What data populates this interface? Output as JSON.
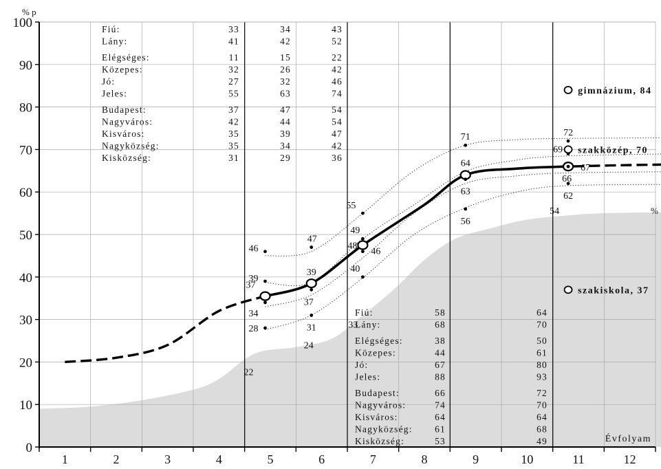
{
  "chart_data": {
    "type": "line",
    "y_unit_label": "% p",
    "x_axis_label": "Évfolyam",
    "right_axis_label": "%",
    "ylim": [
      0,
      100
    ],
    "yticks": [
      0,
      10,
      20,
      30,
      40,
      50,
      60,
      70,
      80,
      90,
      100
    ],
    "categories": [
      "1",
      "2",
      "3",
      "4",
      "5",
      "6",
      "7",
      "8",
      "9",
      "10",
      "11",
      "12"
    ],
    "main_curve": {
      "values": [
        [
          0.5,
          20
        ],
        [
          1.5,
          21
        ],
        [
          2.5,
          24
        ],
        [
          3.5,
          32
        ],
        [
          4.4,
          35.5
        ],
        [
          5.3,
          38.5
        ],
        [
          6.3,
          47.5
        ],
        [
          7.5,
          57
        ],
        [
          8.3,
          64
        ],
        [
          9.3,
          65.5
        ],
        [
          10.3,
          66
        ],
        [
          11.3,
          66.3
        ],
        [
          12.5,
          66.5
        ]
      ],
      "solid_range": [
        4.4,
        10.4
      ]
    },
    "measurements": [
      {
        "x": 4.4,
        "avg": 37,
        "values": [
          46,
          39,
          34,
          28
        ],
        "bottom_label": "22"
      },
      {
        "x": 5.3,
        "avg": 39,
        "values": [
          47,
          37,
          31
        ],
        "bottom_label": "24"
      },
      {
        "x": 6.3,
        "avg": 48,
        "values": [
          55,
          49,
          46,
          40
        ],
        "bottom_label": "33"
      },
      {
        "x": 8.3,
        "avg": 64,
        "values": [
          71,
          63,
          56
        ]
      },
      {
        "x": 10.3,
        "avg": 67,
        "values": [
          72,
          69,
          66,
          62
        ],
        "bottom_label": "54"
      }
    ],
    "envelopes": [
      [
        [
          4.4,
          45
        ],
        [
          5.3,
          46
        ],
        [
          6.3,
          55
        ],
        [
          7.3,
          65
        ],
        [
          8.3,
          71
        ],
        [
          9.3,
          72.3
        ],
        [
          10.3,
          72.6
        ],
        [
          12.5,
          72.8
        ]
      ],
      [
        [
          4.4,
          38.7
        ],
        [
          5.3,
          38.7
        ],
        [
          6.3,
          49
        ],
        [
          7.3,
          57
        ],
        [
          8.3,
          64.8
        ],
        [
          9.3,
          67.5
        ],
        [
          10.3,
          68.5
        ],
        [
          12.5,
          69
        ]
      ],
      [
        [
          4.4,
          33
        ],
        [
          5.3,
          35.8
        ],
        [
          6.3,
          44.5
        ],
        [
          7.3,
          55
        ],
        [
          8.3,
          62
        ],
        [
          9.3,
          63.8
        ],
        [
          10.3,
          64.5
        ],
        [
          12.5,
          64.8
        ]
      ],
      [
        [
          4.4,
          27.6
        ],
        [
          5.3,
          31
        ],
        [
          6.3,
          39.8
        ],
        [
          7.3,
          50
        ],
        [
          8.3,
          56.3
        ],
        [
          9.3,
          60
        ],
        [
          10.3,
          61.5
        ],
        [
          12.5,
          61.8
        ]
      ]
    ],
    "gray_area": [
      [
        0,
        9
      ],
      [
        1,
        9.5
      ],
      [
        2,
        11
      ],
      [
        3,
        13.5
      ],
      [
        3.5,
        16
      ],
      [
        4.2,
        22
      ],
      [
        5,
        23.5
      ],
      [
        5.7,
        25.5
      ],
      [
        6.3,
        31
      ],
      [
        6.9,
        37
      ],
      [
        7.5,
        44
      ],
      [
        8.1,
        49
      ],
      [
        8.8,
        51.5
      ],
      [
        9.5,
        53.5
      ],
      [
        10.3,
        54.5
      ],
      [
        11,
        55
      ],
      [
        12.5,
        55.3
      ]
    ],
    "school_types": [
      {
        "label": "gimnázium, 84",
        "value": 84
      },
      {
        "label": "szakközép, 70",
        "value": 70
      },
      {
        "label": "szakiskola, 37",
        "value": 37
      }
    ],
    "top_table": {
      "groups": [
        [
          [
            "Fiú:",
            "33",
            "34",
            "43"
          ],
          [
            "Lány:",
            "41",
            "42",
            "52"
          ]
        ],
        [
          [
            "Elégséges:",
            "11",
            "15",
            "22"
          ],
          [
            "Közepes:",
            "32",
            "26",
            "42"
          ],
          [
            "Jó:",
            "27",
            "32",
            "46"
          ],
          [
            "Jeles:",
            "55",
            "63",
            "74"
          ]
        ],
        [
          [
            "Budapest:",
            "37",
            "47",
            "54"
          ],
          [
            "Nagyváros:",
            "42",
            "44",
            "54"
          ],
          [
            "Kisváros:",
            "35",
            "39",
            "47"
          ],
          [
            "Nagyközség:",
            "35",
            "34",
            "42"
          ],
          [
            "Kisközség:",
            "31",
            "29",
            "36"
          ]
        ]
      ]
    },
    "bottom_table": {
      "groups": [
        [
          [
            "Fiú:",
            "58",
            "64"
          ],
          [
            "Lány:",
            "68",
            "70"
          ]
        ],
        [
          [
            "Elégséges:",
            "38",
            "50"
          ],
          [
            "Közepes:",
            "44",
            "61"
          ],
          [
            "Jó:",
            "67",
            "80"
          ],
          [
            "Jeles:",
            "88",
            "93"
          ]
        ],
        [
          [
            "Budapest:",
            "66",
            "72"
          ],
          [
            "Nagyváros:",
            "74",
            "70"
          ],
          [
            "Kisváros:",
            "64",
            "64"
          ],
          [
            "Nagyközség:",
            "61",
            "68"
          ],
          [
            "Kisközség:",
            "53",
            "49"
          ]
        ]
      ]
    }
  }
}
